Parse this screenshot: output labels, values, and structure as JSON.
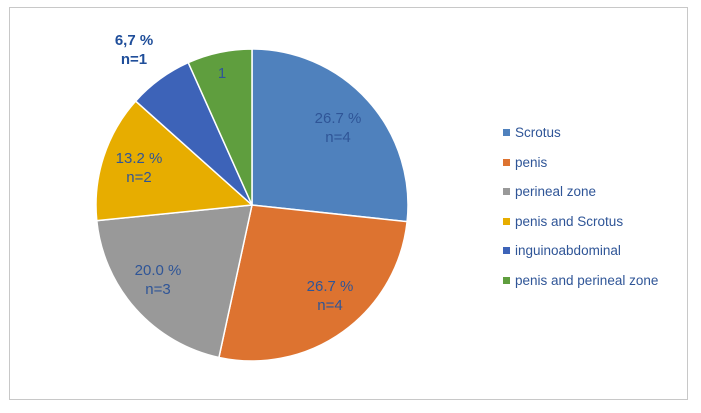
{
  "chart_data": {
    "type": "pie",
    "title": "",
    "start_angle_deg": 0,
    "direction": "clockwise",
    "legend_position": "right",
    "slices": [
      {
        "name": "Scrotus",
        "percent_label": "26.7 %",
        "count_label": "n=4",
        "value": 26.7,
        "color": "#4f81bd"
      },
      {
        "name": "penis",
        "percent_label": "26.7 %",
        "count_label": "n=4",
        "value": 26.7,
        "color": "#dd7330"
      },
      {
        "name": "perineal zone",
        "percent_label": "20.0 %",
        "count_label": "n=3",
        "value": 20.0,
        "color": "#999999"
      },
      {
        "name": "penis and Scrotus",
        "percent_label": "13.2 %",
        "count_label": "n=2",
        "value": 13.2,
        "color": "#e7ad00"
      },
      {
        "name": "inguinoabdominal",
        "percent_label": "6,7 %",
        "count_label": "n=1",
        "value": 6.7,
        "color": "#3d63b8"
      },
      {
        "name": "penis and perineal zone",
        "percent_label": "",
        "count_label": "1",
        "value": 6.7,
        "color": "#5f9e3e"
      }
    ]
  }
}
